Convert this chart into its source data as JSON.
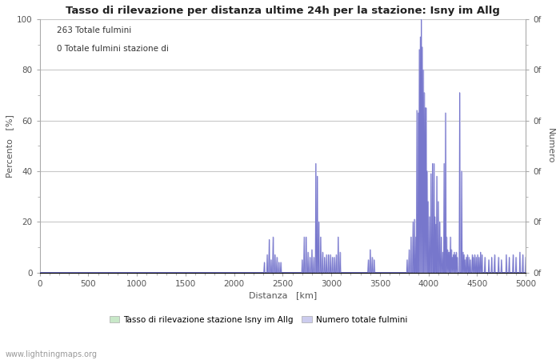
{
  "title": "Tasso di rilevazione per distanza ultime 24h per la stazione: Isny im Allg",
  "xlabel": "Distanza   [km]",
  "ylabel_left": "Percento   [%]",
  "ylabel_right": "Numero",
  "annotation_line1": "263 Totale fulmini",
  "annotation_line2": "0 Totale fulmini stazione di",
  "legend_label1": "Tasso di rilevazione stazione Isny im Allg",
  "legend_label2": "Numero totale fulmini",
  "watermark": "www.lightningmaps.org",
  "xlim": [
    0,
    5000
  ],
  "ylim": [
    0,
    100
  ],
  "xticks": [
    0,
    500,
    1000,
    1500,
    2000,
    2500,
    3000,
    3500,
    4000,
    4500,
    5000
  ],
  "yticks_left": [
    0,
    20,
    40,
    60,
    80,
    100
  ],
  "background_color": "#ffffff",
  "grid_color": "#c8c8c8",
  "line_color": "#7777cc",
  "fill_color": "#ccccee",
  "figsize": [
    7.0,
    4.5
  ],
  "dpi": 100,
  "legend_color1": "#c8e8c8",
  "legend_color2": "#ccccee",
  "spikes": [
    [
      2310,
      4
    ],
    [
      2340,
      7
    ],
    [
      2360,
      13
    ],
    [
      2380,
      5
    ],
    [
      2400,
      14
    ],
    [
      2420,
      7
    ],
    [
      2440,
      6
    ],
    [
      2460,
      4
    ],
    [
      2480,
      4
    ],
    [
      2700,
      5
    ],
    [
      2720,
      14
    ],
    [
      2740,
      14
    ],
    [
      2760,
      8
    ],
    [
      2780,
      6
    ],
    [
      2800,
      9
    ],
    [
      2820,
      6
    ],
    [
      2840,
      43
    ],
    [
      2855,
      38
    ],
    [
      2870,
      20
    ],
    [
      2890,
      14
    ],
    [
      2910,
      8
    ],
    [
      2930,
      6
    ],
    [
      2950,
      7
    ],
    [
      2970,
      7
    ],
    [
      2990,
      7
    ],
    [
      3010,
      6
    ],
    [
      3030,
      6
    ],
    [
      3050,
      7
    ],
    [
      3070,
      14
    ],
    [
      3090,
      8
    ],
    [
      3380,
      5
    ],
    [
      3400,
      9
    ],
    [
      3420,
      6
    ],
    [
      3440,
      5
    ],
    [
      3780,
      5
    ],
    [
      3800,
      9
    ],
    [
      3820,
      14
    ],
    [
      3840,
      20
    ],
    [
      3855,
      21
    ],
    [
      3870,
      14
    ],
    [
      3880,
      64
    ],
    [
      3895,
      63
    ],
    [
      3905,
      88
    ],
    [
      3915,
      93
    ],
    [
      3925,
      100
    ],
    [
      3935,
      89
    ],
    [
      3945,
      80
    ],
    [
      3955,
      71
    ],
    [
      3965,
      65
    ],
    [
      3975,
      65
    ],
    [
      3985,
      40
    ],
    [
      3995,
      28
    ],
    [
      4010,
      22
    ],
    [
      4025,
      39
    ],
    [
      4040,
      43
    ],
    [
      4055,
      43
    ],
    [
      4065,
      22
    ],
    [
      4075,
      19
    ],
    [
      4085,
      38
    ],
    [
      4100,
      28
    ],
    [
      4115,
      20
    ],
    [
      4130,
      14
    ],
    [
      4145,
      8
    ],
    [
      4160,
      43
    ],
    [
      4175,
      63
    ],
    [
      4185,
      14
    ],
    [
      4195,
      9
    ],
    [
      4205,
      8
    ],
    [
      4215,
      8
    ],
    [
      4225,
      14
    ],
    [
      4235,
      9
    ],
    [
      4245,
      6
    ],
    [
      4255,
      7
    ],
    [
      4265,
      8
    ],
    [
      4275,
      7
    ],
    [
      4285,
      8
    ],
    [
      4295,
      6
    ],
    [
      4320,
      71
    ],
    [
      4340,
      40
    ],
    [
      4355,
      8
    ],
    [
      4365,
      7
    ],
    [
      4375,
      5
    ],
    [
      4390,
      6
    ],
    [
      4400,
      7
    ],
    [
      4415,
      6
    ],
    [
      4430,
      5
    ],
    [
      4450,
      7
    ],
    [
      4460,
      6
    ],
    [
      4475,
      7
    ],
    [
      4490,
      6
    ],
    [
      4505,
      7
    ],
    [
      4520,
      6
    ],
    [
      4535,
      8
    ],
    [
      4550,
      7
    ],
    [
      4580,
      6
    ],
    [
      4620,
      5
    ],
    [
      4650,
      6
    ],
    [
      4680,
      7
    ],
    [
      4720,
      6
    ],
    [
      4750,
      5
    ],
    [
      4800,
      7
    ],
    [
      4830,
      6
    ],
    [
      4870,
      7
    ],
    [
      4900,
      6
    ],
    [
      4940,
      8
    ],
    [
      4970,
      7
    ],
    [
      5000,
      6
    ]
  ],
  "fill_region": [
    3850,
    4300
  ]
}
